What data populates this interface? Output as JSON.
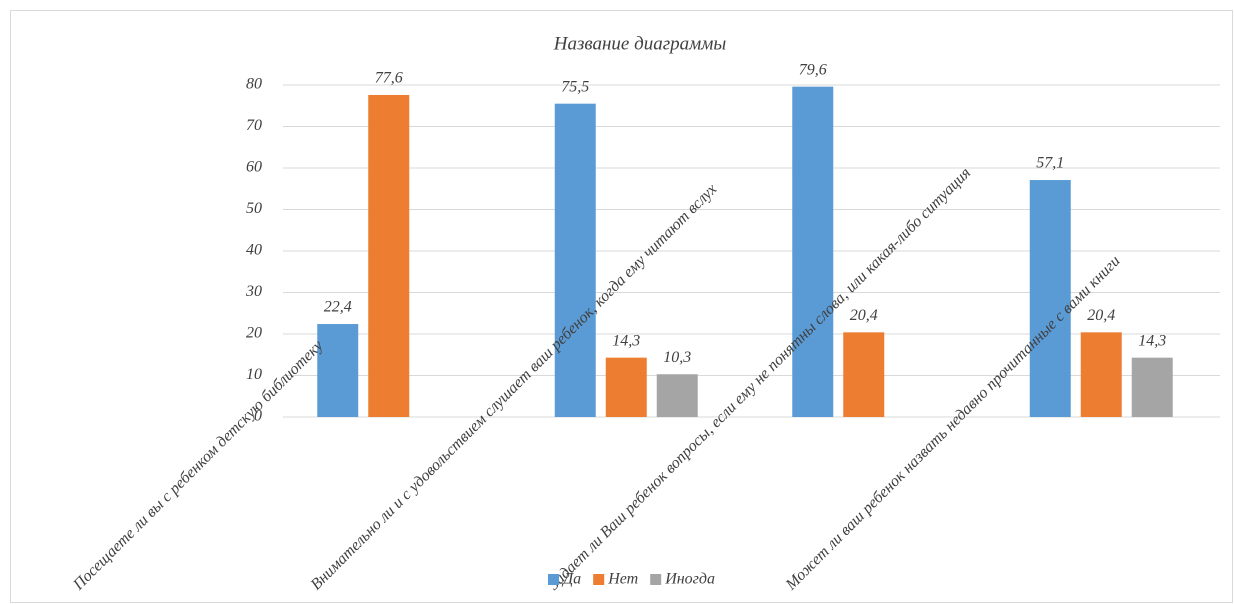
{
  "chart_data": {
    "type": "bar",
    "title": "Название диаграммы",
    "categories": [
      "Посещаете ли вы с ребенком детскую библиотеку",
      "Внимательно ли и с удовольствием слушает ваш ребенок, когда ему читают вслух",
      "Задает ли Ваш ребенок вопросы, если ему не понятны слова, или какая-либо ситуация",
      "Может ли ваш ребенок назвать недавно прочитанные с вами книги"
    ],
    "series": [
      {
        "name": "Да",
        "color": "#5b9bd5",
        "values": [
          22.4,
          75.5,
          79.6,
          57.1
        ],
        "value_labels": [
          "22,4",
          "75,5",
          "79,6",
          "57,1"
        ]
      },
      {
        "name": "Нет",
        "color": "#ed7d31",
        "values": [
          77.6,
          14.3,
          20.4,
          20.4
        ],
        "value_labels": [
          "77,6",
          "14,3",
          "20,4",
          "20,4"
        ]
      },
      {
        "name": "Иногда",
        "color": "#a5a5a5",
        "values": [
          null,
          10.3,
          null,
          14.3
        ],
        "value_labels": [
          null,
          "10,3",
          null,
          "14,3"
        ]
      }
    ],
    "ylim": [
      0,
      80
    ],
    "yticks": [
      0,
      10,
      20,
      30,
      40,
      50,
      60,
      70,
      80
    ],
    "grid": true,
    "legend": "bottom"
  }
}
